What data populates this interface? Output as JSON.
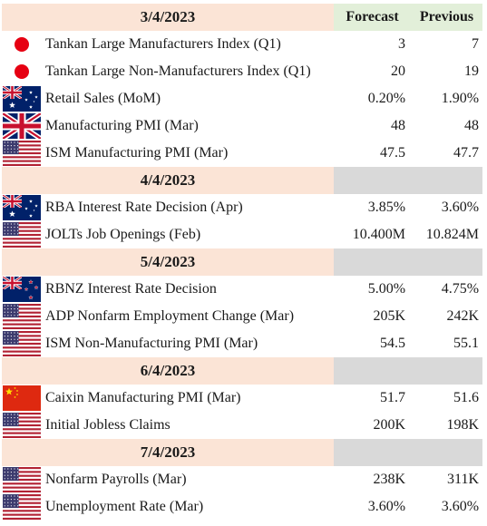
{
  "colors": {
    "date_bg": "#fbe4d6",
    "header_bg": "#e2efd9",
    "blank_bg": "#d9d9d9",
    "japan_red": "#e60012"
  },
  "header": {
    "forecast_label": "Forecast",
    "previous_label": "Previous"
  },
  "days": [
    {
      "date": "3/4/2023",
      "events": [
        {
          "flag": "japan-flag-icon",
          "name": "Tankan Large Manufacturers Index (Q1)",
          "forecast": "3",
          "previous": "7"
        },
        {
          "flag": "japan-flag-icon",
          "name": "Tankan Large Non-Manufacturers Index (Q1)",
          "forecast": "20",
          "previous": "19"
        },
        {
          "flag": "australia-flag-icon",
          "name": "Retail Sales (MoM)",
          "forecast": "0.20%",
          "previous": "1.90%"
        },
        {
          "flag": "uk-flag-icon",
          "name": "Manufacturing PMI (Mar)",
          "forecast": "48",
          "previous": "48"
        },
        {
          "flag": "us-flag-icon",
          "name": "ISM Manufacturing PMI (Mar)",
          "forecast": "47.5",
          "previous": "47.7"
        }
      ]
    },
    {
      "date": "4/4/2023",
      "events": [
        {
          "flag": "australia-flag-icon",
          "name": "RBA Interest Rate Decision (Apr)",
          "forecast": "3.85%",
          "previous": "3.60%"
        },
        {
          "flag": "us-flag-icon",
          "name": "JOLTs Job Openings (Feb)",
          "forecast": "10.400M",
          "previous": "10.824M"
        }
      ]
    },
    {
      "date": "5/4/2023",
      "events": [
        {
          "flag": "new-zealand-flag-icon",
          "name": "RBNZ Interest Rate Decision",
          "forecast": "5.00%",
          "previous": "4.75%"
        },
        {
          "flag": "us-flag-icon",
          "name": "ADP Nonfarm Employment Change (Mar)",
          "forecast": "205K",
          "previous": "242K"
        },
        {
          "flag": "us-flag-icon",
          "name": "ISM Non-Manufacturing PMI (Mar)",
          "forecast": "54.5",
          "previous": "55.1"
        }
      ]
    },
    {
      "date": "6/4/2023",
      "events": [
        {
          "flag": "china-flag-icon",
          "name": "Caixin Manufacturing PMI (Mar)",
          "forecast": "51.7",
          "previous": "51.6"
        },
        {
          "flag": "us-flag-icon",
          "name": "Initial Jobless Claims",
          "forecast": "200K",
          "previous": "198K"
        }
      ]
    },
    {
      "date": "7/4/2023",
      "events": [
        {
          "flag": "us-flag-icon",
          "name": "Nonfarm Payrolls (Mar)",
          "forecast": "238K",
          "previous": "311K"
        },
        {
          "flag": "us-flag-icon",
          "name": "Unemployment Rate (Mar)",
          "forecast": "3.60%",
          "previous": "3.60%"
        }
      ]
    }
  ]
}
